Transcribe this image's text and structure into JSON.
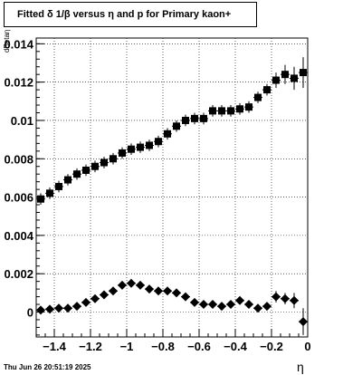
{
  "chart_data": {
    "type": "scatter",
    "title": "Fitted δ 1/β versus η and p for Primary kaon+",
    "xlabel": "η",
    "ylabel": "dBetaη",
    "timestamp": "Thu Jun 26 20:51:19 2025",
    "xlim": [
      -1.5,
      0.0
    ],
    "ylim": [
      -0.0013,
      0.0143
    ],
    "grid": true,
    "x_ticks": [
      {
        "value": -1.4,
        "label": "−1.4"
      },
      {
        "value": -1.2,
        "label": "−1.2"
      },
      {
        "value": -1.0,
        "label": "−1"
      },
      {
        "value": -0.8,
        "label": "−0.8"
      },
      {
        "value": -0.6,
        "label": "−0.6"
      },
      {
        "value": -0.4,
        "label": "−0.4"
      },
      {
        "value": -0.2,
        "label": "−0.2"
      },
      {
        "value": 0.0,
        "label": "0"
      }
    ],
    "y_ticks": [
      {
        "value": 0.0,
        "label": "0"
      },
      {
        "value": 0.002,
        "label": "0.002"
      },
      {
        "value": 0.004,
        "label": "0.004"
      },
      {
        "value": 0.006,
        "label": "0.006"
      },
      {
        "value": 0.008,
        "label": "0.008"
      },
      {
        "value": 0.01,
        "label": "0.01"
      },
      {
        "value": 0.012,
        "label": "0.012"
      },
      {
        "value": 0.014,
        "label": "0.014"
      }
    ],
    "series": [
      {
        "marker": "square",
        "color": "#000000",
        "points": [
          {
            "x": -1.475,
            "y": 0.0059,
            "err": 0.0003
          },
          {
            "x": -1.425,
            "y": 0.0062,
            "err": 0.0003
          },
          {
            "x": -1.375,
            "y": 0.00655,
            "err": 0.0003
          },
          {
            "x": -1.325,
            "y": 0.0069,
            "err": 0.0003
          },
          {
            "x": -1.275,
            "y": 0.0072,
            "err": 0.0003
          },
          {
            "x": -1.225,
            "y": 0.0074,
            "err": 0.0003
          },
          {
            "x": -1.175,
            "y": 0.0076,
            "err": 0.0003
          },
          {
            "x": -1.125,
            "y": 0.0078,
            "err": 0.0003
          },
          {
            "x": -1.075,
            "y": 0.008,
            "err": 0.0003
          },
          {
            "x": -1.025,
            "y": 0.0083,
            "err": 0.0003
          },
          {
            "x": -0.975,
            "y": 0.0085,
            "err": 0.0003
          },
          {
            "x": -0.925,
            "y": 0.0086,
            "err": 0.0003
          },
          {
            "x": -0.875,
            "y": 0.0087,
            "err": 0.0003
          },
          {
            "x": -0.825,
            "y": 0.0089,
            "err": 0.0003
          },
          {
            "x": -0.775,
            "y": 0.0093,
            "err": 0.0003
          },
          {
            "x": -0.725,
            "y": 0.0097,
            "err": 0.0003
          },
          {
            "x": -0.675,
            "y": 0.01,
            "err": 0.0003
          },
          {
            "x": -0.625,
            "y": 0.0101,
            "err": 0.0003
          },
          {
            "x": -0.575,
            "y": 0.0101,
            "err": 0.0003
          },
          {
            "x": -0.525,
            "y": 0.0105,
            "err": 0.0003
          },
          {
            "x": -0.475,
            "y": 0.0105,
            "err": 0.0003
          },
          {
            "x": -0.425,
            "y": 0.0105,
            "err": 0.0003
          },
          {
            "x": -0.375,
            "y": 0.0106,
            "err": 0.0003
          },
          {
            "x": -0.325,
            "y": 0.0107,
            "err": 0.0003
          },
          {
            "x": -0.275,
            "y": 0.0112,
            "err": 0.0003
          },
          {
            "x": -0.225,
            "y": 0.0116,
            "err": 0.0003
          },
          {
            "x": -0.175,
            "y": 0.0121,
            "err": 0.0004
          },
          {
            "x": -0.125,
            "y": 0.0124,
            "err": 0.0005
          },
          {
            "x": -0.075,
            "y": 0.0122,
            "err": 0.0006
          },
          {
            "x": -0.025,
            "y": 0.0125,
            "err": 0.0008
          }
        ]
      },
      {
        "marker": "diamond",
        "color": "#000000",
        "points": [
          {
            "x": -1.475,
            "y": 0.0001,
            "err": 0.0002
          },
          {
            "x": -1.425,
            "y": 0.00015,
            "err": 0.0002
          },
          {
            "x": -1.375,
            "y": 0.0002,
            "err": 0.0002
          },
          {
            "x": -1.325,
            "y": 0.0002,
            "err": 0.0002
          },
          {
            "x": -1.275,
            "y": 0.0003,
            "err": 0.0002
          },
          {
            "x": -1.225,
            "y": 0.0005,
            "err": 0.0002
          },
          {
            "x": -1.175,
            "y": 0.0007,
            "err": 0.0002
          },
          {
            "x": -1.125,
            "y": 0.0009,
            "err": 0.0002
          },
          {
            "x": -1.075,
            "y": 0.0011,
            "err": 0.0002
          },
          {
            "x": -1.025,
            "y": 0.0014,
            "err": 0.0002
          },
          {
            "x": -0.975,
            "y": 0.0015,
            "err": 0.0002
          },
          {
            "x": -0.925,
            "y": 0.0014,
            "err": 0.0002
          },
          {
            "x": -0.875,
            "y": 0.0012,
            "err": 0.0002
          },
          {
            "x": -0.825,
            "y": 0.0011,
            "err": 0.0002
          },
          {
            "x": -0.775,
            "y": 0.0011,
            "err": 0.0002
          },
          {
            "x": -0.725,
            "y": 0.001,
            "err": 0.0002
          },
          {
            "x": -0.675,
            "y": 0.0008,
            "err": 0.0002
          },
          {
            "x": -0.625,
            "y": 0.0005,
            "err": 0.0002
          },
          {
            "x": -0.575,
            "y": 0.0004,
            "err": 0.0002
          },
          {
            "x": -0.525,
            "y": 0.0004,
            "err": 0.0002
          },
          {
            "x": -0.475,
            "y": 0.0003,
            "err": 0.0002
          },
          {
            "x": -0.425,
            "y": 0.0004,
            "err": 0.0002
          },
          {
            "x": -0.375,
            "y": 0.0006,
            "err": 0.0002
          },
          {
            "x": -0.325,
            "y": 0.0004,
            "err": 0.0002
          },
          {
            "x": -0.275,
            "y": 0.0002,
            "err": 0.0002
          },
          {
            "x": -0.225,
            "y": 0.0003,
            "err": 0.0002
          },
          {
            "x": -0.175,
            "y": 0.0008,
            "err": 0.0003
          },
          {
            "x": -0.125,
            "y": 0.0007,
            "err": 0.0003
          },
          {
            "x": -0.075,
            "y": 0.0006,
            "err": 0.0004
          },
          {
            "x": -0.025,
            "y": -0.0005,
            "err": 0.0007
          }
        ]
      }
    ]
  }
}
